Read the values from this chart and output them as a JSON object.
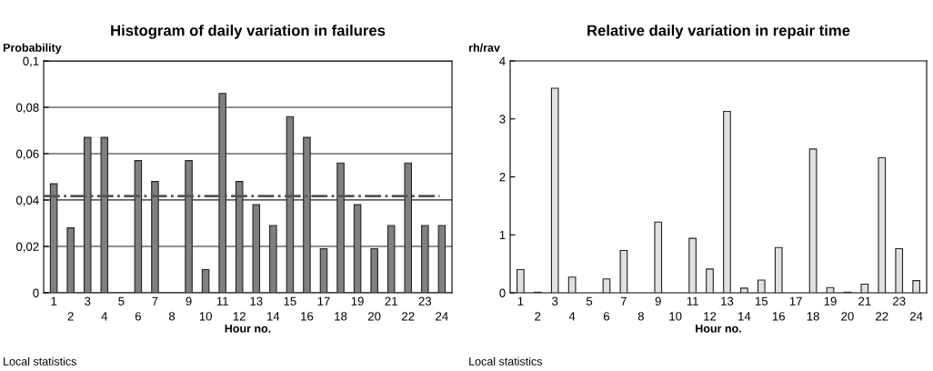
{
  "chart_data": [
    {
      "type": "bar",
      "title": "Histogram of daily variation in failures",
      "ylabel": "Probability",
      "xlabel": "Hour no.",
      "categories": [
        "1",
        "2",
        "3",
        "4",
        "5",
        "6",
        "7",
        "8",
        "9",
        "10",
        "11",
        "12",
        "13",
        "14",
        "15",
        "16",
        "17",
        "18",
        "19",
        "20",
        "21",
        "22",
        "23",
        "24"
      ],
      "values": [
        0.047,
        0.028,
        0.067,
        0.067,
        0,
        0.057,
        0.048,
        0,
        0.057,
        0.01,
        0.086,
        0.048,
        0.038,
        0.029,
        0.076,
        0.067,
        0.019,
        0.056,
        0.038,
        0.019,
        0.029,
        0.056,
        0.029,
        0.029
      ],
      "color": "#808080",
      "ylim": [
        0,
        0.1
      ],
      "yticks": [
        0,
        {
          "value": 0.02,
          "label": "0,02"
        },
        {
          "value": 0.04,
          "label": "0,04"
        },
        {
          "value": 0.06,
          "label": "0,06"
        },
        {
          "value": 0.08,
          "label": "0,08"
        },
        {
          "value": 0.1,
          "label": "0,1"
        }
      ],
      "grid": "y",
      "ref_lines": [
        {
          "axis": "y",
          "value": 0.0417,
          "color": "#555555",
          "line_style": "dashdot"
        }
      ],
      "annotations": [
        "Local statistics"
      ]
    },
    {
      "type": "bar",
      "title": "Relative daily variation in repair time",
      "ylabel": "rh/rav",
      "xlabel": "Hour no.",
      "categories": [
        "1",
        "2",
        "3",
        "4",
        "5",
        "6",
        "7",
        "8",
        "9",
        "10",
        "11",
        "12",
        "13",
        "14",
        "15",
        "16",
        "17",
        "18",
        "19",
        "20",
        "21",
        "22",
        "23",
        "24"
      ],
      "values": [
        0.4,
        0.01,
        3.53,
        0.27,
        0,
        0.24,
        0.73,
        0,
        1.22,
        0,
        0.94,
        0.41,
        3.13,
        0.08,
        0.22,
        0.78,
        0,
        2.48,
        0.09,
        0.01,
        0.15,
        2.33,
        0.76,
        0.21
      ],
      "color": "#e0e0e0",
      "ylim": [
        0,
        4
      ],
      "yticks": [
        0,
        1,
        2,
        3,
        4
      ],
      "annotations": [
        "Local statistics"
      ]
    }
  ]
}
